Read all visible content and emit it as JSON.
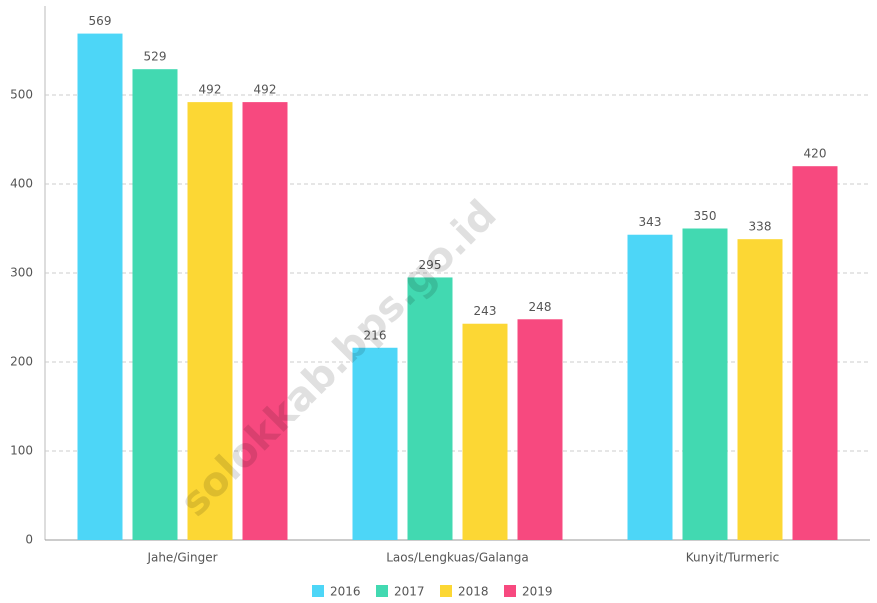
{
  "chart_data": {
    "type": "bar",
    "categories": [
      "Jahe/Ginger",
      "Laos/Lengkuas/Galanga",
      "Kunyit/Turmeric"
    ],
    "series": [
      {
        "name": "2016",
        "color": "#4dd6f7",
        "values": [
          569,
          216,
          343
        ]
      },
      {
        "name": "2017",
        "color": "#42d9b1",
        "values": [
          529,
          295,
          350
        ]
      },
      {
        "name": "2018",
        "color": "#fcd734",
        "values": [
          492,
          243,
          338
        ]
      },
      {
        "name": "2019",
        "color": "#f7497f",
        "values": [
          492,
          248,
          420
        ]
      }
    ],
    "ylim": [
      0,
      600
    ],
    "yticks": [
      0,
      100,
      200,
      300,
      400,
      500
    ],
    "grid": true,
    "legend": "bottom",
    "watermark": "solokkab.bps.go.id"
  }
}
